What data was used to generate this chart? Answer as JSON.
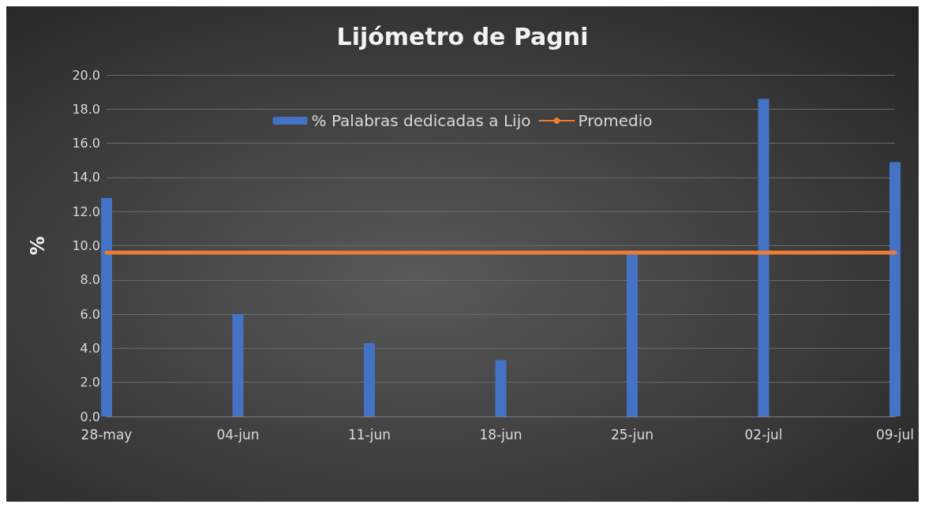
{
  "chart_data": {
    "type": "bar",
    "title": "Lijómetro de Pagni",
    "ylabel": "%",
    "categories": [
      "28-may",
      "04-jun",
      "11-jun",
      "18-jun",
      "25-jun",
      "02-jul",
      "09-jul"
    ],
    "series": [
      {
        "name": "% Palabras dedicadas a Lijo",
        "color": "#4472c4",
        "values": [
          12.8,
          6.0,
          4.3,
          3.3,
          9.6,
          18.6,
          14.9
        ]
      },
      {
        "name": "Promedio",
        "type": "line",
        "color": "#ed7d31",
        "values": [
          9.6,
          9.6,
          9.6,
          9.6,
          9.6,
          9.6,
          9.6
        ]
      }
    ],
    "ylim": [
      0,
      20
    ],
    "yticks": [
      {
        "value": 0,
        "label": "0.0"
      },
      {
        "value": 2,
        "label": "2.0"
      },
      {
        "value": 4,
        "label": "4.0"
      },
      {
        "value": 6,
        "label": "6.0"
      },
      {
        "value": 8,
        "label": "8.0"
      },
      {
        "value": 10,
        "label": "10.0"
      },
      {
        "value": 12,
        "label": "12.0"
      },
      {
        "value": 14,
        "label": "14.0"
      },
      {
        "value": 16,
        "label": "16.0"
      },
      {
        "value": 18,
        "label": "18.0"
      },
      {
        "value": 20,
        "label": "20.0"
      }
    ],
    "grid": "y",
    "legend": "top",
    "marker": "none"
  }
}
